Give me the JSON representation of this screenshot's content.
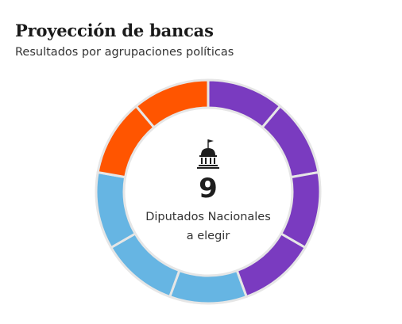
{
  "header": {
    "title": "Proyección de bancas",
    "subtitle": "Resultados por agrupaciones políticas"
  },
  "center": {
    "icon": "capitol-building-icon",
    "value": "9",
    "label_line1": "Diputados Nacionales",
    "label_line2": "a elegir"
  },
  "colors": {
    "purple": "#7A3BC0",
    "blue": "#66B5E3",
    "orange": "#FF5500",
    "segment_border": "#E6E6E6"
  },
  "chart_data": {
    "type": "pie",
    "total_seats": 9,
    "slices": [
      {
        "color": "#7A3BC0",
        "seats": 4
      },
      {
        "color": "#66B5E3",
        "seats": 3
      },
      {
        "color": "#FF5500",
        "seats": 2
      }
    ]
  }
}
